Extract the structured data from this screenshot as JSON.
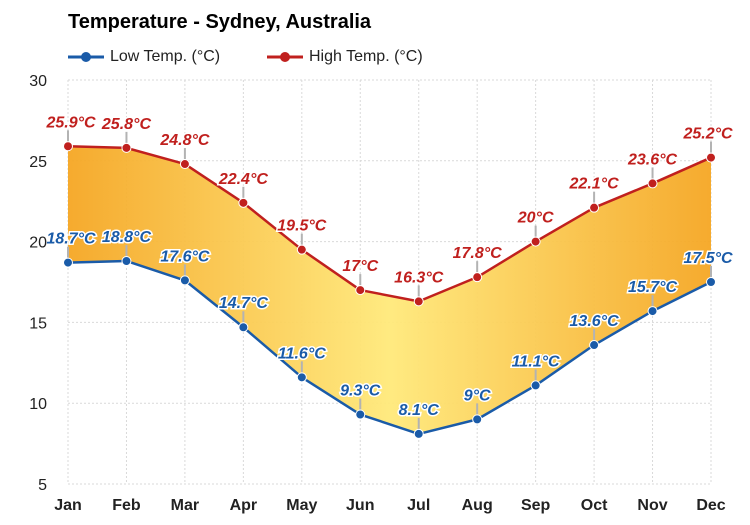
{
  "chart_data": {
    "type": "area",
    "title": "Temperature - Sydney, Australia",
    "categories": [
      "Jan",
      "Feb",
      "Mar",
      "Apr",
      "May",
      "Jun",
      "Jul",
      "Aug",
      "Sep",
      "Oct",
      "Nov",
      "Dec"
    ],
    "series": [
      {
        "name": "Low Temp. (°C)",
        "color": "#1a5ba8",
        "values": [
          18.7,
          18.8,
          17.6,
          14.7,
          11.6,
          9.3,
          8.1,
          9,
          11.1,
          13.6,
          15.7,
          17.5
        ],
        "labels": [
          "18.7°C",
          "18.8°C",
          "17.6°C",
          "14.7°C",
          "11.6°C",
          "9.3°C",
          "8.1°C",
          "9°C",
          "11.1°C",
          "13.6°C",
          "15.7°C",
          "17.5°C"
        ]
      },
      {
        "name": "High Temp. (°C)",
        "color": "#c0201e",
        "values": [
          25.9,
          25.8,
          24.8,
          22.4,
          19.5,
          17,
          16.3,
          17.8,
          20,
          22.1,
          23.6,
          25.2
        ],
        "labels": [
          "25.9°C",
          "25.8°C",
          "24.8°C",
          "22.4°C",
          "19.5°C",
          "17°C",
          "16.3°C",
          "17.8°C",
          "20°C",
          "22.1°C",
          "23.6°C",
          "25.2°C"
        ]
      }
    ],
    "ylim": [
      5,
      30
    ],
    "yticks": [
      "5",
      "10",
      "15",
      "20",
      "25",
      "30"
    ],
    "grid": true,
    "legend_position": "top-left",
    "fill_colors": [
      "#f5a623",
      "#ffe97a"
    ]
  }
}
